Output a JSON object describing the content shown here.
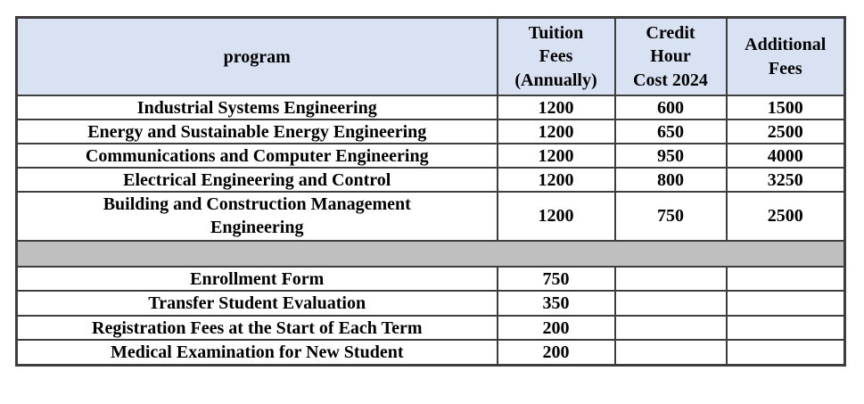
{
  "table": {
    "header": {
      "program_label": "program",
      "tuition_lines": [
        "Tuition",
        "Fees",
        "(Annually)"
      ],
      "credit_lines": [
        "Credit",
        "Hour",
        "Cost 2024"
      ],
      "additional_lines": [
        "Additional",
        "Fees"
      ]
    },
    "programs": [
      {
        "name": "Industrial Systems Engineering",
        "tuition": "1200",
        "credit_hour": "600",
        "additional": "1500"
      },
      {
        "name": "Energy and Sustainable Energy Engineering",
        "tuition": "1200",
        "credit_hour": "650",
        "additional": "2500"
      },
      {
        "name": "Communications and Computer Engineering",
        "tuition": "1200",
        "credit_hour": "950",
        "additional": "4000"
      },
      {
        "name": "Electrical Engineering and Control",
        "tuition": "1200",
        "credit_hour": "800",
        "additional": "3250"
      },
      {
        "name_lines": [
          "Building and Construction Management",
          "Engineering"
        ],
        "tuition": "1200",
        "credit_hour": "750",
        "additional": "2500"
      }
    ],
    "additional_items": [
      {
        "name": "Enrollment Form",
        "tuition": "750",
        "credit_hour": "",
        "additional": ""
      },
      {
        "name": "Transfer Student Evaluation",
        "tuition": "350",
        "credit_hour": "",
        "additional": ""
      },
      {
        "name": "Registration Fees at the Start of Each Term",
        "tuition": "200",
        "credit_hour": "",
        "additional": ""
      },
      {
        "name": "Medical Examination for New Student",
        "tuition": "200",
        "credit_hour": "",
        "additional": ""
      }
    ]
  },
  "colors": {
    "header_bg": "#d9e2f3",
    "separator_bg": "#bfbfbf",
    "border": "#3d3d3d",
    "text": "#000000"
  }
}
